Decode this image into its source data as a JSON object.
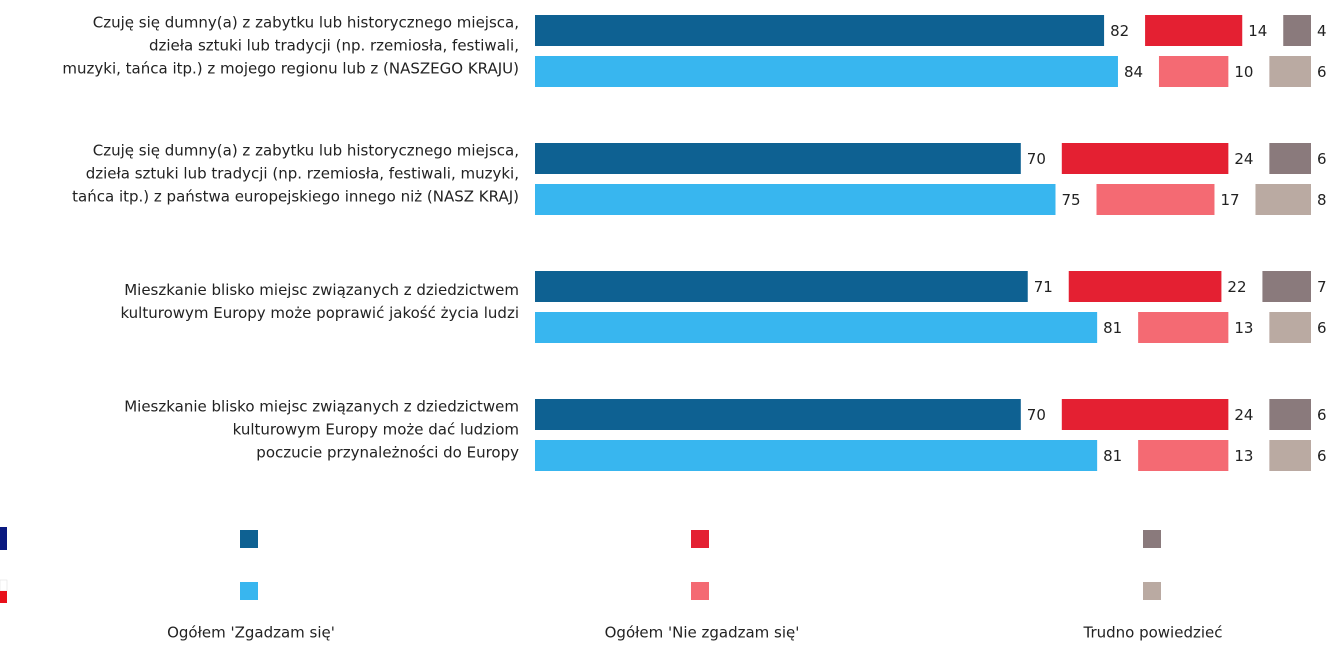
{
  "chart_data": {
    "type": "bar",
    "categories": [
      [
        "Czuję się dumny(a) z zabytku lub historycznego miejsca,",
        "dzieła sztuki lub tradycji (np. rzemiosła, festiwali,",
        "muzyki, tańca itp.) z mojego regionu lub z (NASZEGO KRAJU)"
      ],
      [
        "Czuję się dumny(a) z zabytku lub historycznego miejsca,",
        "dzieła sztuki lub tradycji (np. rzemiosła, festiwali, muzyki,",
        "tańca itp.) z państwa europejskiego innego niż (NASZ KRAJ)"
      ],
      [
        "Mieszkanie blisko miejsc związanych z dziedzictwem",
        "kulturowym Europy może poprawić jakość życia ludzi"
      ],
      [
        "Mieszkanie blisko miejsc związanych z dziedzictwem",
        "kulturowym Europy może dać ludziom",
        "poczucie przynależności do Europy"
      ]
    ],
    "series": [
      {
        "name": "Ogółem 'Zgadzam się'",
        "colors": [
          "#0e6192",
          "#38b6ef"
        ],
        "values": [
          [
            82,
            84
          ],
          [
            70,
            75
          ],
          [
            71,
            81
          ],
          [
            70,
            81
          ]
        ]
      },
      {
        "name": "Ogółem 'Nie zgadzam się'",
        "colors": [
          "#e42032",
          "#f46a73"
        ],
        "values": [
          [
            14,
            10
          ],
          [
            24,
            17
          ],
          [
            22,
            13
          ],
          [
            24,
            13
          ]
        ]
      },
      {
        "name": "Trudno powiedzieć",
        "colors": [
          "#8a7a7c",
          "#baaaa2"
        ],
        "values": [
          [
            4,
            6
          ],
          [
            6,
            8
          ],
          [
            7,
            6
          ],
          [
            6,
            6
          ]
        ]
      }
    ]
  }
}
